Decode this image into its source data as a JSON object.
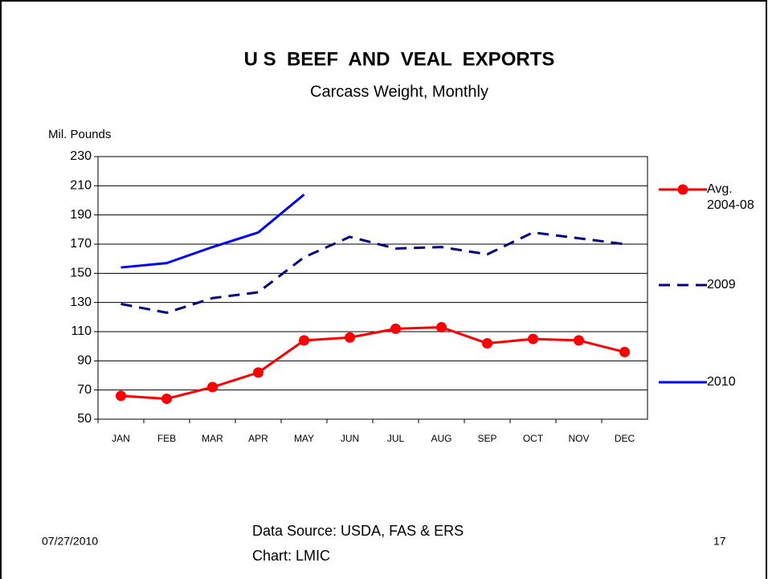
{
  "chart_data": {
    "type": "line",
    "title": "U S  BEEF  AND  VEAL  EXPORTS",
    "subtitle": "Carcass Weight, Monthly",
    "y_label": "Mil. Pounds",
    "categories": [
      "JAN",
      "FEB",
      "MAR",
      "APR",
      "MAY",
      "JUN",
      "JUL",
      "AUG",
      "SEP",
      "OCT",
      "NOV",
      "DEC"
    ],
    "series": [
      {
        "name": "Avg. 2004-08",
        "color": "#ff0000",
        "line_style": "solid",
        "marker": "circle",
        "values": [
          66,
          64,
          72,
          82,
          104,
          106,
          112,
          113,
          102,
          105,
          104,
          96
        ]
      },
      {
        "name": "2009",
        "color": "#000080",
        "line_style": "dashed",
        "marker": "none",
        "values": [
          129,
          123,
          133,
          137,
          161,
          175,
          167,
          168,
          163,
          178,
          174,
          170
        ]
      },
      {
        "name": "2010",
        "color": "#0000ff",
        "line_style": "solid",
        "marker": "none",
        "values": [
          154,
          157,
          168,
          178,
          204,
          null,
          null,
          null,
          null,
          null,
          null,
          null
        ]
      }
    ],
    "ylim": [
      50,
      230
    ],
    "yticks": [
      50,
      70,
      90,
      110,
      130,
      150,
      170,
      190,
      210,
      230
    ],
    "grid": true,
    "legend": "right"
  },
  "footer": {
    "date": "07/27/2010",
    "source": "Data Source: USDA, FAS & ERS",
    "credit": "Chart: LMIC",
    "page_number": "17"
  }
}
